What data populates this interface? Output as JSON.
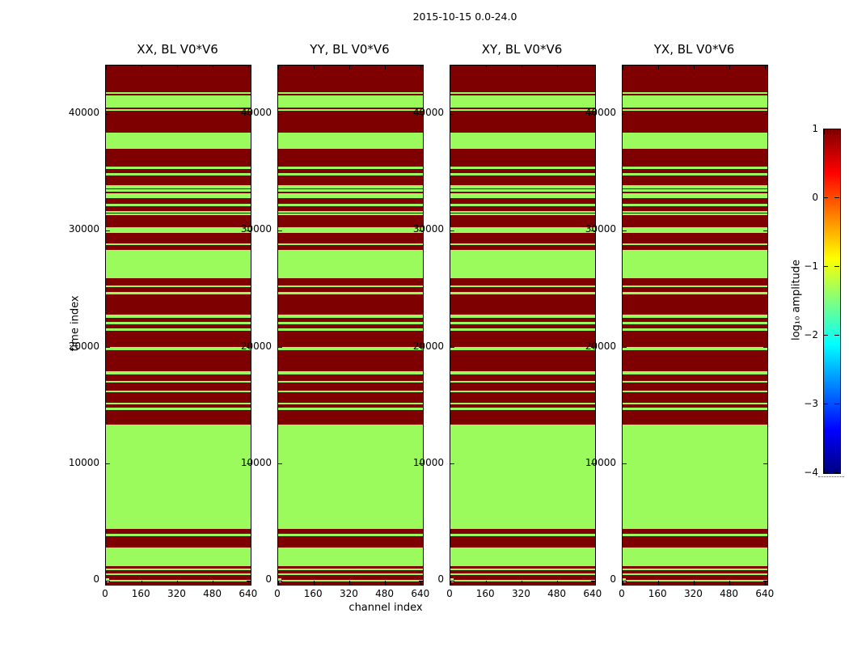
{
  "chart_data": {
    "type": "heatmap",
    "suptitle": "2015-10-15 0.0-24.0",
    "xlabel": "channel index",
    "ylabel": "time index",
    "panels": [
      {
        "id": "xx",
        "title": "XX, BL V0*V6"
      },
      {
        "id": "yy",
        "title": "YY, BL V0*V6"
      },
      {
        "id": "xy",
        "title": "XY, BL V0*V6"
      },
      {
        "id": "yx",
        "title": "YX, BL V0*V6"
      }
    ],
    "xlim": [
      0,
      648
    ],
    "ylim": [
      -330,
      44160
    ],
    "xticks": [
      0,
      160,
      320,
      480,
      640
    ],
    "yticks": [
      0,
      10000,
      20000,
      30000,
      40000
    ],
    "xtick_labels": [
      "0",
      "160",
      "320",
      "480",
      "640"
    ],
    "ytick_labels": [
      "0",
      "10000",
      "20000",
      "30000",
      "40000"
    ],
    "high_value_log10_amp": 1.0,
    "low_value_log10_amp": -1.5,
    "high_color": "#7f0000",
    "low_color": "#9bfb5c",
    "note": "All four polarization panels show the identical band pattern; background is the high (dark red) value, low_bands_time lists [start,end] time-index ranges rendered in the low (green) value.",
    "low_bands_time": [
      [
        -50,
        90
      ],
      [
        510,
        650
      ],
      [
        920,
        1060
      ],
      [
        1270,
        2860
      ],
      [
        3830,
        4040
      ],
      [
        4460,
        13400
      ],
      [
        14650,
        14860
      ],
      [
        15130,
        15270
      ],
      [
        16170,
        16310
      ],
      [
        17000,
        17140
      ],
      [
        17700,
        17970
      ],
      [
        19780,
        20050
      ],
      [
        21440,
        21650
      ],
      [
        21990,
        22200
      ],
      [
        22550,
        22820
      ],
      [
        24560,
        24770
      ],
      [
        25180,
        25320
      ],
      [
        25940,
        28370
      ],
      [
        28780,
        28920
      ],
      [
        29820,
        30310
      ],
      [
        31350,
        31490
      ],
      [
        31560,
        31700
      ],
      [
        32110,
        32320
      ],
      [
        32810,
        33220
      ],
      [
        33360,
        33570
      ],
      [
        33640,
        33920
      ],
      [
        34750,
        34960
      ],
      [
        35310,
        35520
      ],
      [
        37030,
        38420
      ],
      [
        40290,
        40430
      ],
      [
        40550,
        41610
      ],
      [
        41710,
        41890
      ]
    ],
    "corner_patch": {
      "channels": [
        0,
        15
      ],
      "time": [
        -120,
        230
      ]
    },
    "colorbar": {
      "label": "log₁₀ amplitude",
      "vmin": -4,
      "vmax": 1,
      "tick_values": [
        1,
        0,
        -1,
        -2,
        -3,
        -4
      ],
      "tick_labels": [
        "1",
        "0",
        "−1",
        "−2",
        "−3",
        "−4"
      ],
      "colormap": "jet",
      "gradient_top_to_bottom": [
        "#800000",
        "#ff0000",
        "#ffff00",
        "#00ffff",
        "#0000ff",
        "#000080"
      ]
    }
  }
}
